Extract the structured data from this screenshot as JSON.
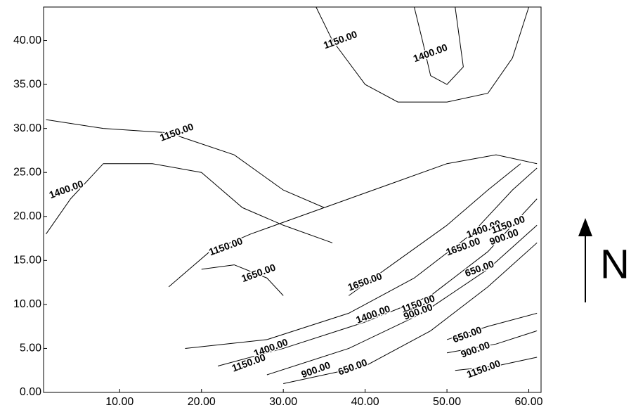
{
  "chart_data": {
    "type": "contour",
    "xlim": [
      0.7,
      61.5
    ],
    "ylim": [
      0,
      43.8
    ],
    "xticks": [
      {
        "value": 10,
        "label": "10.00"
      },
      {
        "value": 20,
        "label": "20.00"
      },
      {
        "value": 30,
        "label": "30.00"
      },
      {
        "value": 40,
        "label": "40.00"
      },
      {
        "value": 50,
        "label": "50.00"
      },
      {
        "value": 60,
        "label": "60.00"
      }
    ],
    "yticks": [
      {
        "value": 0,
        "label": "0.00"
      },
      {
        "value": 5,
        "label": "5.00"
      },
      {
        "value": 10,
        "label": "10.00"
      },
      {
        "value": 15,
        "label": "15.00"
      },
      {
        "value": 20,
        "label": "20.00"
      },
      {
        "value": 25,
        "label": "25.00"
      },
      {
        "value": 30,
        "label": "30.00"
      },
      {
        "value": 35,
        "label": "35.00"
      },
      {
        "value": 40,
        "label": "40.00"
      }
    ],
    "color": "#000000",
    "annotation": "N",
    "contours": [
      {
        "x": [
          30,
          40,
          48,
          55,
          61
        ],
        "y": [
          1,
          3,
          7,
          12,
          17
        ]
      },
      {
        "x": [
          28,
          38,
          47,
          55,
          61
        ],
        "y": [
          2,
          5,
          9,
          14,
          19
        ]
      },
      {
        "x": [
          22,
          30,
          40,
          48,
          55,
          61
        ],
        "y": [
          3,
          5,
          8,
          11,
          16,
          22
        ]
      },
      {
        "x": [
          18,
          28,
          38,
          46,
          53,
          58,
          61
        ],
        "y": [
          5,
          6,
          9,
          13,
          18,
          23,
          25.5
        ]
      },
      {
        "x": [
          38,
          44,
          50,
          55,
          59
        ],
        "y": [
          11,
          15,
          19,
          23,
          26
        ]
      },
      {
        "x": [
          50,
          55,
          61
        ],
        "y": [
          6,
          7.5,
          9
        ]
      },
      {
        "x": [
          50,
          56,
          61
        ],
        "y": [
          4.5,
          5.5,
          7
        ]
      },
      {
        "x": [
          51,
          56,
          61
        ],
        "y": [
          2.5,
          3,
          4
        ]
      },
      {
        "x": [
          1,
          8,
          16,
          24,
          30,
          35
        ],
        "y": [
          31,
          30,
          29.5,
          27,
          23,
          21
        ]
      },
      {
        "x": [
          1,
          4,
          8,
          14,
          20,
          25,
          30,
          36
        ],
        "y": [
          18,
          22,
          26,
          26,
          25,
          21,
          19,
          17
        ]
      },
      {
        "x": [
          20,
          24,
          28,
          30
        ],
        "y": [
          14,
          14.5,
          13,
          11
        ]
      },
      {
        "x": [
          16,
          21,
          26,
          32,
          38,
          44,
          50,
          56,
          61
        ],
        "y": [
          12,
          16,
          18,
          20,
          22,
          24,
          26,
          27,
          26
        ]
      },
      {
        "x": [
          34,
          36,
          40,
          44,
          50,
          55,
          58,
          60
        ],
        "y": [
          43.8,
          40,
          35,
          33,
          33,
          34,
          38,
          43.8
        ]
      },
      {
        "x": [
          46,
          47,
          48,
          50,
          52,
          51
        ],
        "y": [
          43.8,
          40,
          36,
          35,
          37,
          43.8
        ]
      }
    ],
    "contour_labels": [
      {
        "text": "1150.00",
        "x": 37,
        "y": 40
      },
      {
        "text": "1400.00",
        "x": 48,
        "y": 38.5
      },
      {
        "text": "1150.00",
        "x": 17,
        "y": 29.5
      },
      {
        "text": "1400.00",
        "x": 3.5,
        "y": 23
      },
      {
        "text": "1150.00",
        "x": 23,
        "y": 16.5
      },
      {
        "text": "1650.00",
        "x": 27,
        "y": 13.5
      },
      {
        "text": "1650.00",
        "x": 40,
        "y": 12.5
      },
      {
        "text": "1400.00",
        "x": 41,
        "y": 8.8
      },
      {
        "text": "1150.00",
        "x": 46.5,
        "y": 10
      },
      {
        "text": "900.00",
        "x": 46.5,
        "y": 9.1
      },
      {
        "text": "1400.00",
        "x": 28.5,
        "y": 5
      },
      {
        "text": "1150.00",
        "x": 25.8,
        "y": 3.3
      },
      {
        "text": "900.00",
        "x": 34,
        "y": 2.5
      },
      {
        "text": "650.00",
        "x": 38.5,
        "y": 2.8
      },
      {
        "text": "1650.00",
        "x": 52,
        "y": 16.5
      },
      {
        "text": "1400.00",
        "x": 54.5,
        "y": 18.5
      },
      {
        "text": "1150.00",
        "x": 57.5,
        "y": 19
      },
      {
        "text": "900.00",
        "x": 57,
        "y": 17.6
      },
      {
        "text": "650.00",
        "x": 54,
        "y": 14
      },
      {
        "text": "650.00",
        "x": 52.5,
        "y": 6.5
      },
      {
        "text": "900.00",
        "x": 53.5,
        "y": 4.8
      },
      {
        "text": "1150.00",
        "x": 54.5,
        "y": 2.6
      }
    ]
  }
}
